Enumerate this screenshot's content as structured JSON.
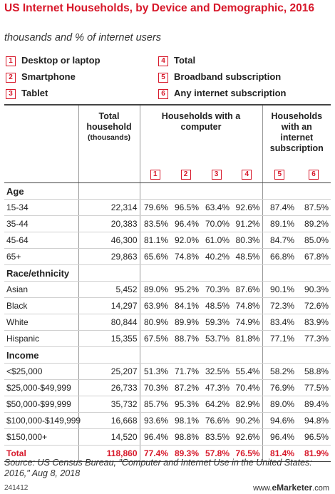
{
  "header": {
    "title": "US Internet Households, by Device and Demographic, 2016",
    "subtitle": "thousands and % of internet users"
  },
  "legend": [
    {
      "number": "1",
      "label": "Desktop or laptop"
    },
    {
      "number": "2",
      "label": "Smartphone"
    },
    {
      "number": "3",
      "label": "Tablet"
    },
    {
      "number": "4",
      "label": "Total"
    },
    {
      "number": "5",
      "label": "Broadband subscription"
    },
    {
      "number": "6",
      "label": "Any internet subscription"
    }
  ],
  "table": {
    "columns": {
      "total": "Total household",
      "total_unit": "(thousands)",
      "computer": "Households with a computer",
      "internet": "Households with an internet subscription"
    },
    "sections": [
      {
        "name": "Age",
        "rows": [
          {
            "label": "15-34",
            "values": [
              "22,314",
              "79.6%",
              "96.5%",
              "63.4%",
              "92.6%",
              "87.4%",
              "87.5%"
            ]
          },
          {
            "label": "35-44",
            "values": [
              "20,383",
              "83.5%",
              "96.4%",
              "70.0%",
              "91.2%",
              "89.1%",
              "89.2%"
            ]
          },
          {
            "label": "45-64",
            "values": [
              "46,300",
              "81.1%",
              "92.0%",
              "61.0%",
              "80.3%",
              "84.7%",
              "85.0%"
            ]
          },
          {
            "label": "65+",
            "values": [
              "29,863",
              "65.6%",
              "74.8%",
              "40.2%",
              "48.5%",
              "66.8%",
              "67.8%"
            ]
          }
        ]
      },
      {
        "name": "Race/ethnicity",
        "rows": [
          {
            "label": "Asian",
            "values": [
              "5,452",
              "89.0%",
              "95.2%",
              "70.3%",
              "87.6%",
              "90.1%",
              "90.3%"
            ]
          },
          {
            "label": "Black",
            "values": [
              "14,297",
              "63.9%",
              "84.1%",
              "48.5%",
              "74.8%",
              "72.3%",
              "72.6%"
            ]
          },
          {
            "label": "White",
            "values": [
              "80,844",
              "80.9%",
              "89.9%",
              "59.3%",
              "74.9%",
              "83.4%",
              "83.9%"
            ]
          },
          {
            "label": "Hispanic",
            "values": [
              "15,355",
              "67.5%",
              "88.7%",
              "53.7%",
              "81.8%",
              "77.1%",
              "77.3%"
            ]
          }
        ]
      },
      {
        "name": "Income",
        "rows": [
          {
            "label": "<$25,000",
            "values": [
              "25,207",
              "51.3%",
              "71.7%",
              "32.5%",
              "55.4%",
              "58.2%",
              "58.8%"
            ]
          },
          {
            "label": "$25,000-$49,999",
            "values": [
              "26,733",
              "70.3%",
              "87.2%",
              "47.3%",
              "70.4%",
              "76.9%",
              "77.5%"
            ]
          },
          {
            "label": "$50,000-$99,999",
            "values": [
              "35,732",
              "85.7%",
              "95.3%",
              "64.2%",
              "82.9%",
              "89.0%",
              "89.4%"
            ]
          },
          {
            "label": "$100,000-$149,999",
            "values": [
              "16,668",
              "93.6%",
              "98.1%",
              "76.6%",
              "90.2%",
              "94.6%",
              "94.8%"
            ]
          },
          {
            "label": "$150,000+",
            "values": [
              "14,520",
              "96.4%",
              "98.8%",
              "83.5%",
              "92.6%",
              "96.4%",
              "96.5%"
            ]
          }
        ]
      }
    ],
    "total": {
      "label": "Total",
      "values": [
        "118,860",
        "77.4%",
        "89.3%",
        "57.8%",
        "76.5%",
        "81.4%",
        "81.9%"
      ]
    }
  },
  "source": "Source: US Census Bureau, \"Computer and Internet Use in the United States: 2016,\" Aug 8, 2018",
  "footer": {
    "id": "241412",
    "brand": [
      "www.",
      "eMarketer",
      ".com"
    ]
  }
}
